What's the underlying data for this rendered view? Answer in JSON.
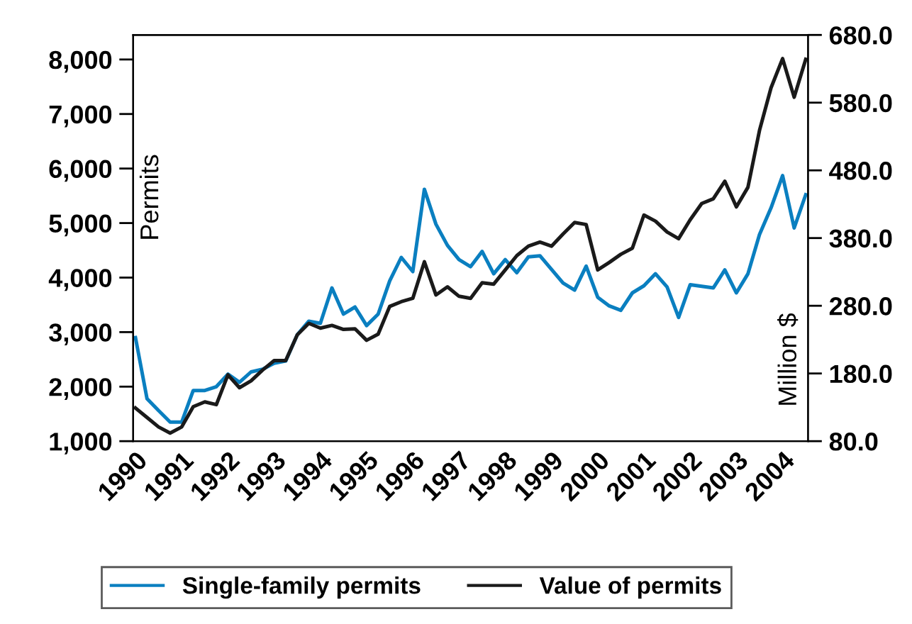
{
  "chart_data": {
    "type": "line",
    "x": [
      1990.0,
      1990.25,
      1990.5,
      1990.75,
      1991.0,
      1991.25,
      1991.5,
      1991.75,
      1992.0,
      1992.25,
      1992.5,
      1992.75,
      1993.0,
      1993.25,
      1993.5,
      1993.75,
      1994.0,
      1994.25,
      1994.5,
      1994.75,
      1995.0,
      1995.25,
      1995.5,
      1995.75,
      1996.0,
      1996.25,
      1996.5,
      1996.75,
      1997.0,
      1997.25,
      1997.5,
      1997.75,
      1998.0,
      1998.25,
      1998.5,
      1998.75,
      1999.0,
      1999.25,
      1999.5,
      1999.75,
      2000.0,
      2000.25,
      2000.5,
      2000.75,
      2001.0,
      2001.25,
      2001.5,
      2001.75,
      2002.0,
      2002.25,
      2002.5,
      2002.75,
      2003.0,
      2003.25,
      2003.5,
      2003.75,
      2004.0,
      2004.25,
      2004.5
    ],
    "series": [
      {
        "name": "Single-family permits",
        "color": "#0a7fc0",
        "values": [
          2900,
          1780,
          1560,
          1350,
          1350,
          1930,
          1930,
          2000,
          2230,
          2080,
          2270,
          2320,
          2430,
          2470,
          2950,
          3200,
          3160,
          3810,
          3330,
          3460,
          3120,
          3330,
          3940,
          4370,
          4110,
          5620,
          4980,
          4590,
          4330,
          4200,
          4480,
          4070,
          4330,
          4090,
          4380,
          4400,
          4150,
          3900,
          3770,
          4210,
          3640,
          3480,
          3400,
          3720,
          3850,
          4070,
          3830,
          3270,
          3870,
          3840,
          3810,
          4140,
          3720,
          4070,
          4790,
          5280,
          5870,
          4910,
          5520
        ]
      },
      {
        "name": "Value of permits",
        "color": "#1a1a1a",
        "axis": "y2",
        "values": [
          129,
          115,
          101,
          92,
          101,
          131,
          138,
          134,
          178,
          159,
          169,
          185,
          199,
          199,
          237,
          254,
          247,
          251,
          245,
          246,
          229,
          238,
          279,
          286,
          291,
          345,
          296,
          308,
          294,
          291,
          314,
          312,
          333,
          354,
          368,
          374,
          368,
          386,
          403,
          400,
          333,
          344,
          356,
          365,
          414,
          405,
          389,
          379,
          407,
          431,
          438,
          464,
          426,
          455,
          539,
          602,
          645,
          588,
          644
        ]
      }
    ],
    "ylabel": "Permits",
    "y2label": "Million $",
    "xlim": [
      1989.95,
      2004.55
    ],
    "xticks": [
      {
        "value": 1990,
        "label": "1990"
      },
      {
        "value": 1991,
        "label": "1991"
      },
      {
        "value": 1992,
        "label": "1992"
      },
      {
        "value": 1993,
        "label": "1993"
      },
      {
        "value": 1994,
        "label": "1994"
      },
      {
        "value": 1995,
        "label": "1995"
      },
      {
        "value": 1996,
        "label": "1996"
      },
      {
        "value": 1997,
        "label": "1997"
      },
      {
        "value": 1998,
        "label": "1998"
      },
      {
        "value": 1999,
        "label": "1999"
      },
      {
        "value": 2000,
        "label": "2000"
      },
      {
        "value": 2001,
        "label": "2001"
      },
      {
        "value": 2002,
        "label": "2002"
      },
      {
        "value": 2003,
        "label": "2003"
      },
      {
        "value": 2004,
        "label": "2004"
      }
    ],
    "ylim": [
      1000,
      8450
    ],
    "yticks": [
      {
        "value": 1000,
        "label": "1,000"
      },
      {
        "value": 2000,
        "label": "2,000"
      },
      {
        "value": 3000,
        "label": "3,000"
      },
      {
        "value": 4000,
        "label": "4,000"
      },
      {
        "value": 5000,
        "label": "5,000"
      },
      {
        "value": 6000,
        "label": "6,000"
      },
      {
        "value": 7000,
        "label": "7,000"
      },
      {
        "value": 8000,
        "label": "8,000"
      }
    ],
    "y2lim": [
      80,
      680
    ],
    "y2ticks": [
      {
        "value": 80,
        "label": "80.0"
      },
      {
        "value": 180,
        "label": "180.0"
      },
      {
        "value": 280,
        "label": "280.0"
      },
      {
        "value": 380,
        "label": "380.0"
      },
      {
        "value": 480,
        "label": "480.0"
      },
      {
        "value": 580,
        "label": "580.0"
      },
      {
        "value": 680,
        "label": "680.0"
      }
    ],
    "legend": "bottom",
    "grid": false,
    "marker": "none",
    "line_style": "solid"
  }
}
